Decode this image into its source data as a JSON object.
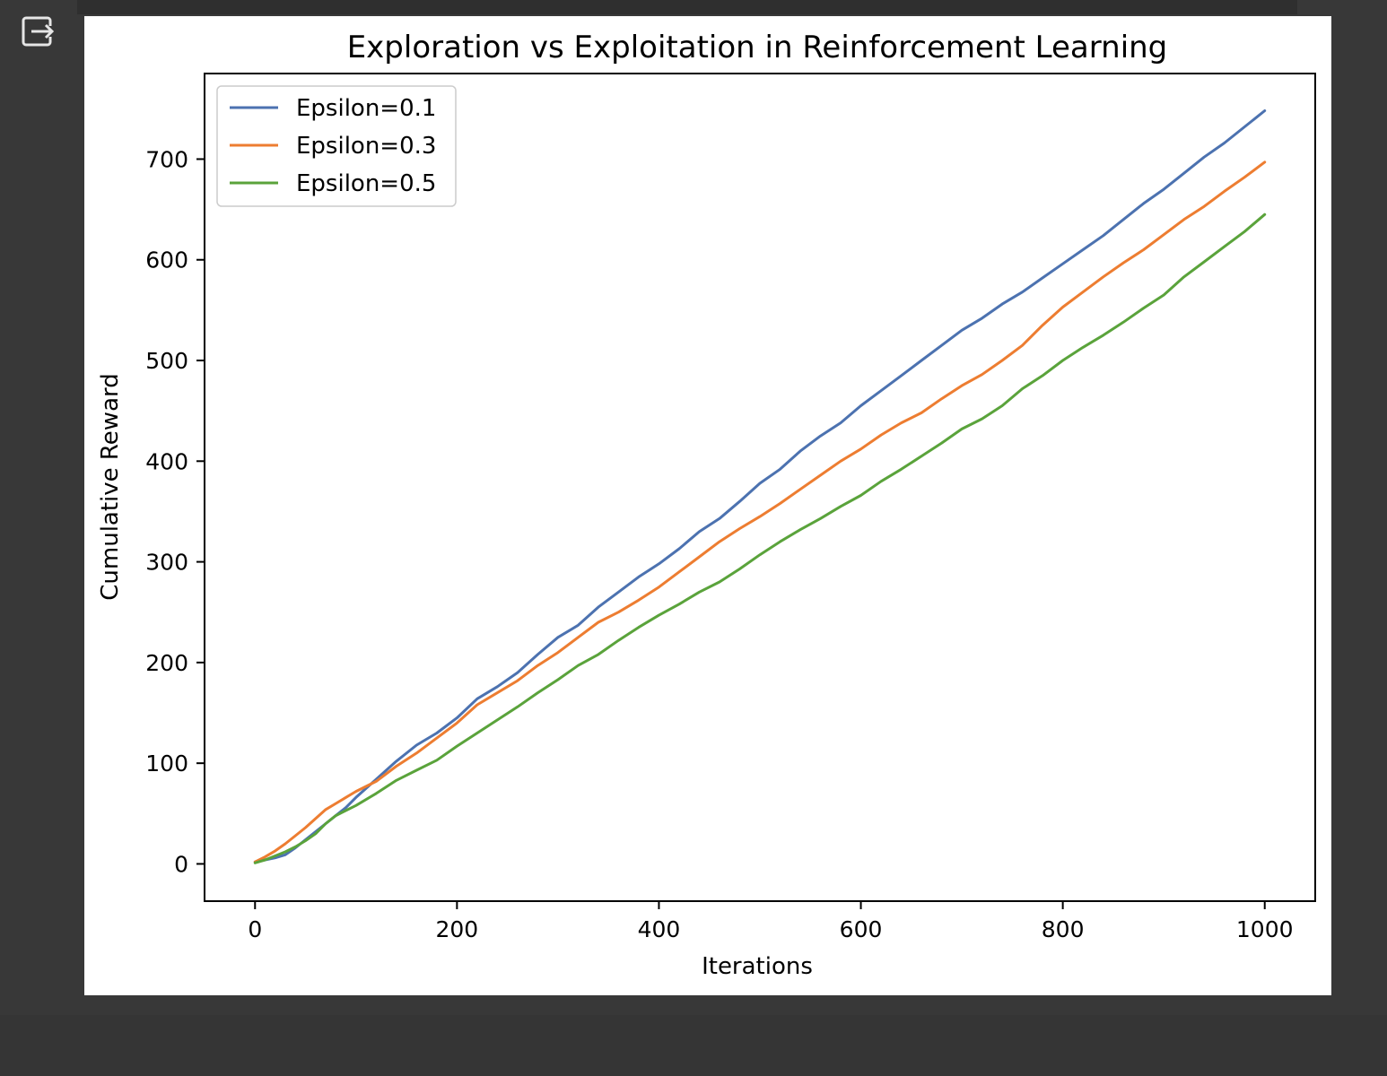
{
  "toolbar": {
    "output_icon": "output-redirect-icon"
  },
  "chart_data": {
    "type": "line",
    "title": "Exploration vs Exploitation in Reinforcement Learning",
    "xlabel": "Iterations",
    "ylabel": "Cumulative Reward",
    "xlim": [
      -50,
      1050
    ],
    "ylim": [
      -37,
      785
    ],
    "xticks": [
      0,
      200,
      400,
      600,
      800,
      1000
    ],
    "yticks": [
      0,
      100,
      200,
      300,
      400,
      500,
      600,
      700
    ],
    "grid": false,
    "legend_position": "upper-left",
    "series": [
      {
        "name": "Epsilon=0.1",
        "color": "#4c72b0",
        "x": [
          0,
          10,
          20,
          30,
          40,
          50,
          60,
          70,
          80,
          90,
          100,
          120,
          140,
          160,
          180,
          200,
          220,
          240,
          260,
          280,
          300,
          320,
          340,
          360,
          380,
          400,
          420,
          440,
          460,
          480,
          500,
          520,
          540,
          560,
          580,
          600,
          620,
          640,
          660,
          680,
          700,
          720,
          740,
          760,
          780,
          800,
          820,
          840,
          860,
          880,
          900,
          920,
          940,
          960,
          980,
          1000
        ],
        "y": [
          2,
          4,
          6,
          9,
          16,
          24,
          32,
          40,
          48,
          56,
          66,
          84,
          102,
          118,
          130,
          145,
          164,
          176,
          190,
          208,
          225,
          237,
          255,
          270,
          285,
          298,
          313,
          330,
          343,
          360,
          378,
          392,
          410,
          425,
          438,
          455,
          470,
          485,
          500,
          515,
          530,
          542,
          556,
          568,
          582,
          596,
          610,
          624,
          640,
          656,
          670,
          686,
          702,
          716,
          732,
          748
        ]
      },
      {
        "name": "Epsilon=0.3",
        "color": "#ed7d31",
        "x": [
          0,
          10,
          20,
          30,
          40,
          50,
          60,
          70,
          80,
          90,
          100,
          120,
          140,
          160,
          180,
          200,
          220,
          240,
          260,
          280,
          300,
          320,
          340,
          360,
          380,
          400,
          420,
          440,
          460,
          480,
          500,
          520,
          540,
          560,
          580,
          600,
          620,
          640,
          660,
          680,
          700,
          720,
          740,
          760,
          780,
          800,
          820,
          840,
          860,
          880,
          900,
          920,
          940,
          960,
          980,
          1000
        ],
        "y": [
          2,
          7,
          13,
          20,
          28,
          36,
          45,
          54,
          60,
          66,
          72,
          82,
          97,
          110,
          125,
          140,
          158,
          170,
          182,
          197,
          210,
          225,
          240,
          250,
          262,
          275,
          290,
          305,
          320,
          333,
          345,
          358,
          372,
          386,
          400,
          412,
          426,
          438,
          448,
          462,
          475,
          486,
          500,
          515,
          535,
          553,
          568,
          583,
          597,
          610,
          625,
          640,
          653,
          668,
          682,
          697
        ]
      },
      {
        "name": "Epsilon=0.5",
        "color": "#5aa33b",
        "x": [
          0,
          10,
          20,
          30,
          40,
          50,
          60,
          70,
          80,
          90,
          100,
          120,
          140,
          160,
          180,
          200,
          220,
          240,
          260,
          280,
          300,
          320,
          340,
          360,
          380,
          400,
          420,
          440,
          460,
          480,
          500,
          520,
          540,
          560,
          580,
          600,
          620,
          640,
          660,
          680,
          700,
          720,
          740,
          760,
          780,
          800,
          820,
          840,
          860,
          880,
          900,
          920,
          940,
          960,
          980,
          1000
        ],
        "y": [
          1,
          4,
          8,
          12,
          17,
          23,
          30,
          40,
          48,
          53,
          58,
          70,
          83,
          93,
          103,
          117,
          130,
          143,
          156,
          170,
          183,
          197,
          208,
          222,
          235,
          247,
          258,
          270,
          280,
          293,
          307,
          320,
          332,
          343,
          355,
          366,
          380,
          392,
          405,
          418,
          432,
          442,
          455,
          472,
          485,
          500,
          513,
          525,
          538,
          552,
          565,
          583,
          598,
          613,
          628,
          645
        ]
      }
    ]
  }
}
